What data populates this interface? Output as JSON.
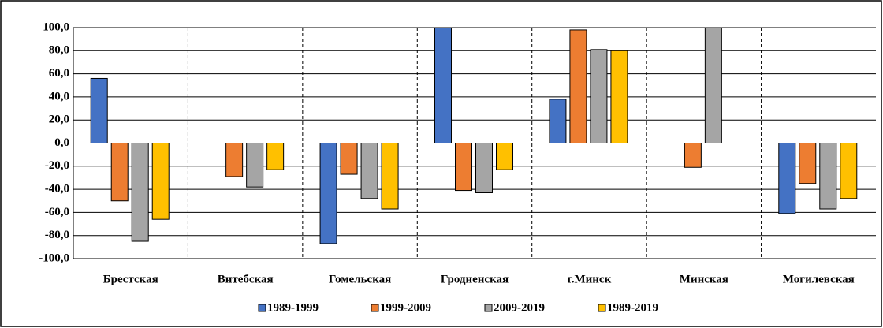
{
  "chart_data": {
    "type": "bar",
    "categories": [
      "Брестская",
      "Витебская",
      "Гомельская",
      "Гродненская",
      "г.Минск",
      "Минская",
      "Могилевская"
    ],
    "series": [
      {
        "name": "1989-1999",
        "color": "#4472c4",
        "values": [
          56,
          null,
          -87,
          100,
          38,
          null,
          -61
        ]
      },
      {
        "name": "1999-2009",
        "color": "#ed7d31",
        "values": [
          -50,
          -29,
          -27,
          -41,
          98,
          -21,
          -35
        ]
      },
      {
        "name": "2009-2019",
        "color": "#a5a5a5",
        "values": [
          -85,
          -38,
          -48,
          -43,
          81,
          100,
          -57
        ]
      },
      {
        "name": "1989-2019",
        "color": "#ffc000",
        "values": [
          -66,
          -23,
          -57,
          -23,
          80,
          null,
          -48
        ]
      }
    ],
    "ylim": [
      -100,
      100
    ],
    "yticks": [
      {
        "value": -100,
        "label": "-100,0"
      },
      {
        "value": -80,
        "label": "-80,0"
      },
      {
        "value": -60,
        "label": "-60,0"
      },
      {
        "value": -40,
        "label": "-40,0"
      },
      {
        "value": -20,
        "label": "-20,0"
      },
      {
        "value": 0,
        "label": "0,0"
      },
      {
        "value": 20,
        "label": "20,0"
      },
      {
        "value": 40,
        "label": "40,0"
      },
      {
        "value": 60,
        "label": "60,0"
      },
      {
        "value": 80,
        "label": "80,0"
      },
      {
        "value": 100,
        "label": "100,0"
      }
    ],
    "grid": true,
    "legend": "bottom"
  }
}
